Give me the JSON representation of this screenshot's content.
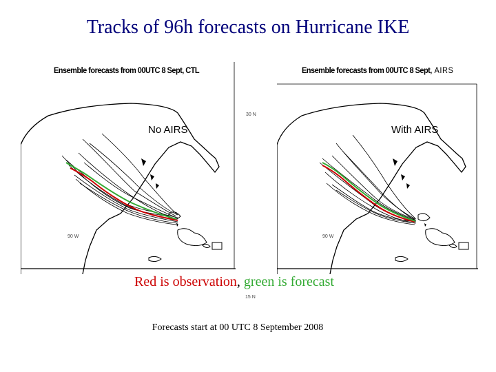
{
  "slide": {
    "title": "Tracks of 96h forecasts on Hurricane IKE",
    "caption": {
      "red_part": "Red is observation",
      "separator": ", ",
      "green_part": "green is forecast"
    },
    "footer": "Forecasts start at 00 UTC 8 September 2008"
  },
  "panels": [
    {
      "header": "Ensemble forecasts from 00UTC 8 Sept, CTL",
      "header_suffix": "",
      "tag": "No AIRS",
      "lon_label": "90 W"
    },
    {
      "header": "Ensemble forecasts from 00UTC 8 Sept,",
      "header_suffix": "AIRS",
      "tag": "With AIRS",
      "lon_label": "90 W"
    }
  ],
  "grid_labels": {
    "lat_top": "30 N",
    "lat_bottom": "15 N"
  },
  "colors": {
    "title": "#00007a",
    "observation": "#cc0000",
    "forecast": "#33aa33",
    "ensemble": "#000000"
  }
}
